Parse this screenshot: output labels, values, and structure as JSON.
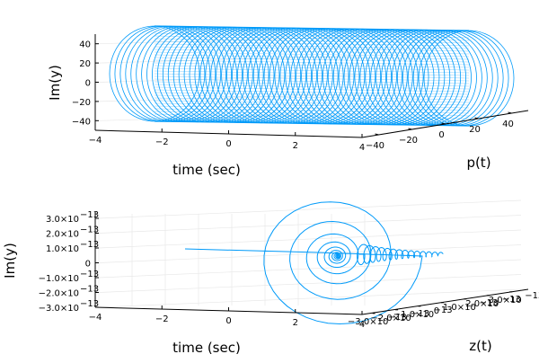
{
  "chart_data": [
    {
      "type": "line",
      "projection": "3d",
      "xlabel": "time (sec)",
      "ylabel": "p(t)",
      "zlabel": "Im(y)",
      "xlim": [
        -4,
        4
      ],
      "ylim": [
        -40,
        40
      ],
      "zlim": [
        -50,
        50
      ],
      "xticks": [
        "−4",
        "−2",
        "0",
        "2",
        "4"
      ],
      "yticks": [
        "−40",
        "−20",
        "0",
        "20",
        "40"
      ],
      "zticks": [
        "−40",
        "−20",
        "0",
        "20",
        "40"
      ],
      "series_color": "#009af9",
      "grid": true,
      "legend": false
    },
    {
      "type": "line",
      "projection": "3d",
      "xlabel": "time (sec)",
      "ylabel": "z(t)",
      "zlabel": "Im(y)",
      "xlim": [
        -4,
        4
      ],
      "xticks": [
        "−4",
        "−2",
        "0",
        "2",
        "4"
      ],
      "yticks": [
        "−3.0×10",
        "−2.0×10",
        "−1.0×10",
        "0",
        "1.0×10",
        "2.0×10",
        "3.0×10"
      ],
      "zticks": [
        "3.0×10",
        "2.0×10",
        "1.0×10",
        "0",
        "−1.0×10",
        "−2.0×10",
        "−3.0×10"
      ],
      "tick_exponent": "−13",
      "series_color": "#009af9",
      "grid": true,
      "legend": false
    }
  ]
}
